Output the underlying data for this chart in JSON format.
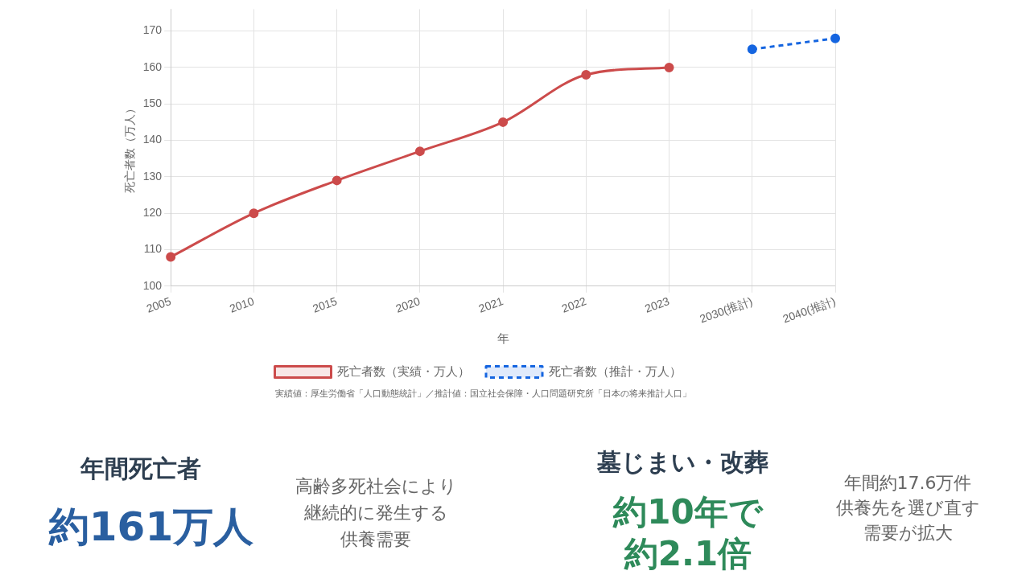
{
  "chart_data": [
    {
      "type": "line",
      "xlabel": "年",
      "ylabel": "死亡者数（万人）",
      "categories": [
        "2005",
        "2010",
        "2015",
        "2020",
        "2021",
        "2022",
        "2023",
        "2030(推計)",
        "2040(推計)"
      ],
      "series": [
        {
          "name": "死亡者数（実績・万人）",
          "color": "#cc4b4b",
          "values": [
            108,
            120,
            129,
            137,
            145,
            158,
            160,
            null,
            null
          ],
          "line_style": "solid"
        },
        {
          "name": "死亡者数（推計・万人）",
          "color": "#1565e0",
          "values": [
            null,
            null,
            null,
            null,
            null,
            null,
            null,
            165,
            168
          ],
          "line_style": "dashed"
        }
      ],
      "ylim": [
        100,
        176
      ],
      "yticks": [
        100,
        110,
        120,
        130,
        140,
        150,
        160,
        170
      ],
      "grid": true,
      "legend": "bottom",
      "marker": "circle",
      "annotations": [
        "実績値：厚生労働省「人口動態統計」／推計値：国立社会保障・人口問題研究所「日本の将来推計人口」"
      ]
    },
    {
      "type": "other",
      "annotations": [
        "年間死亡者",
        "約161万人",
        "高齢多死社会により",
        "継続的に発生する",
        "供養需要",
        "墓じまい・改葬",
        "約10年で",
        "約2.1倍",
        "年間約17.6万件",
        "供養先を選び直す",
        "需要が拡大"
      ]
    }
  ]
}
